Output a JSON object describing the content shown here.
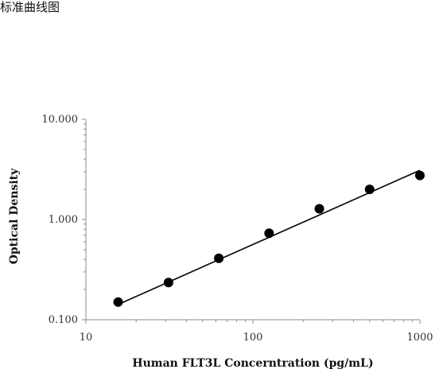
{
  "heading": "标准曲线图",
  "chart_data": {
    "type": "scatter",
    "title": "",
    "xlabel": "Human FLT3L Concerntration (pg/mL)",
    "ylabel": "Optical Density",
    "x_scale": "log",
    "y_scale": "log",
    "xlim": [
      10,
      1000
    ],
    "ylim": [
      0.1,
      10
    ],
    "x_ticks": [
      10,
      100,
      1000
    ],
    "x_tick_labels": [
      "10",
      "100",
      "1000"
    ],
    "y_ticks": [
      0.1,
      1,
      10
    ],
    "y_tick_labels": [
      "0.100",
      "1.000",
      "10.000"
    ],
    "grid": false,
    "legend": "none",
    "series": [
      {
        "x": [
          15.6,
          31.25,
          62.5,
          125,
          250,
          500,
          1000
        ],
        "y": [
          0.15,
          0.235,
          0.41,
          0.73,
          1.28,
          2.0,
          2.75
        ],
        "color": "#000000"
      }
    ],
    "trendline": {
      "type": "power",
      "x": [
        15.6,
        1000
      ],
      "y": [
        0.142,
        3.1
      ],
      "color": "#000000"
    }
  }
}
